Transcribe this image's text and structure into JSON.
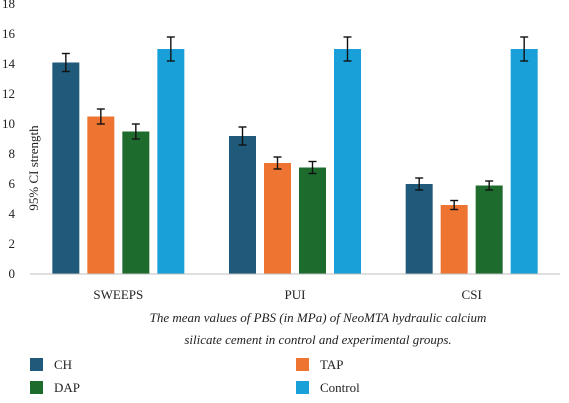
{
  "chart_data": {
    "type": "bar",
    "title": "",
    "xlabel": "",
    "ylabel": "95% CI strength",
    "caption_lines": [
      "The mean values of PBS (in MPa) of NeoMTA hydraulic calcium",
      "silicate cement in control and experimental groups."
    ],
    "categories": [
      "SWEEPS",
      "PUI",
      "CSI"
    ],
    "ylim": [
      0,
      18
    ],
    "yticks": [
      0,
      2,
      4,
      6,
      8,
      10,
      12,
      14,
      16,
      18
    ],
    "grid": false,
    "legend_position": "bottom",
    "series": [
      {
        "name": "CH",
        "color": "#1f5a7a",
        "values": [
          14.1,
          9.2,
          6.0
        ],
        "error": [
          0.6,
          0.6,
          0.4
        ]
      },
      {
        "name": "TAP",
        "color": "#ed7531",
        "values": [
          10.5,
          7.4,
          4.6
        ],
        "error": [
          0.5,
          0.4,
          0.3
        ]
      },
      {
        "name": "DAP",
        "color": "#1e6b2e",
        "values": [
          9.5,
          7.1,
          5.9
        ],
        "error": [
          0.5,
          0.4,
          0.3
        ]
      },
      {
        "name": "Control",
        "color": "#1aa0d8",
        "values": [
          15.0,
          15.0,
          15.0
        ],
        "error": [
          0.8,
          0.8,
          0.8
        ]
      }
    ]
  }
}
